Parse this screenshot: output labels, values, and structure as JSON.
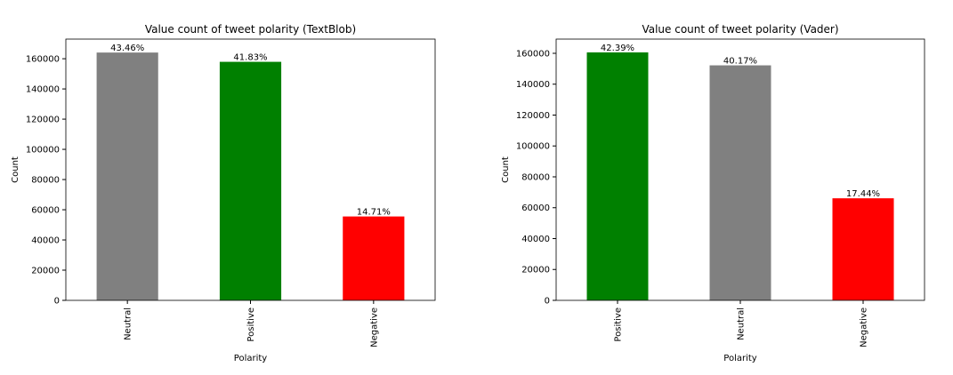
{
  "chart_data": [
    {
      "type": "bar",
      "title": "Value count of tweet polarity (TextBlob)",
      "x_label": "Polarity",
      "y_label": "Count",
      "categories": [
        "Neutral",
        "Positive",
        "Negative"
      ],
      "values": [
        164100,
        157950,
        55550
      ],
      "colors": [
        "#808080",
        "#008000",
        "#ff0000"
      ],
      "bar_labels": [
        "43.46%",
        "41.83%",
        "14.71%"
      ],
      "ylim": [
        0,
        173000
      ],
      "yticks": [
        0,
        20000,
        40000,
        60000,
        80000,
        100000,
        120000,
        140000,
        160000
      ]
    },
    {
      "type": "bar",
      "title": "Value count of tweet polarity (Vader)",
      "x_label": "Polarity",
      "y_label": "Count",
      "categories": [
        "Positive",
        "Neutral",
        "Negative"
      ],
      "values": [
        160600,
        152200,
        66100
      ],
      "colors": [
        "#008000",
        "#808080",
        "#ff0000"
      ],
      "bar_labels": [
        "42.39%",
        "40.17%",
        "17.44%"
      ],
      "ylim": [
        0,
        169200
      ],
      "yticks": [
        0,
        20000,
        40000,
        60000,
        80000,
        100000,
        120000,
        140000,
        160000
      ]
    }
  ]
}
